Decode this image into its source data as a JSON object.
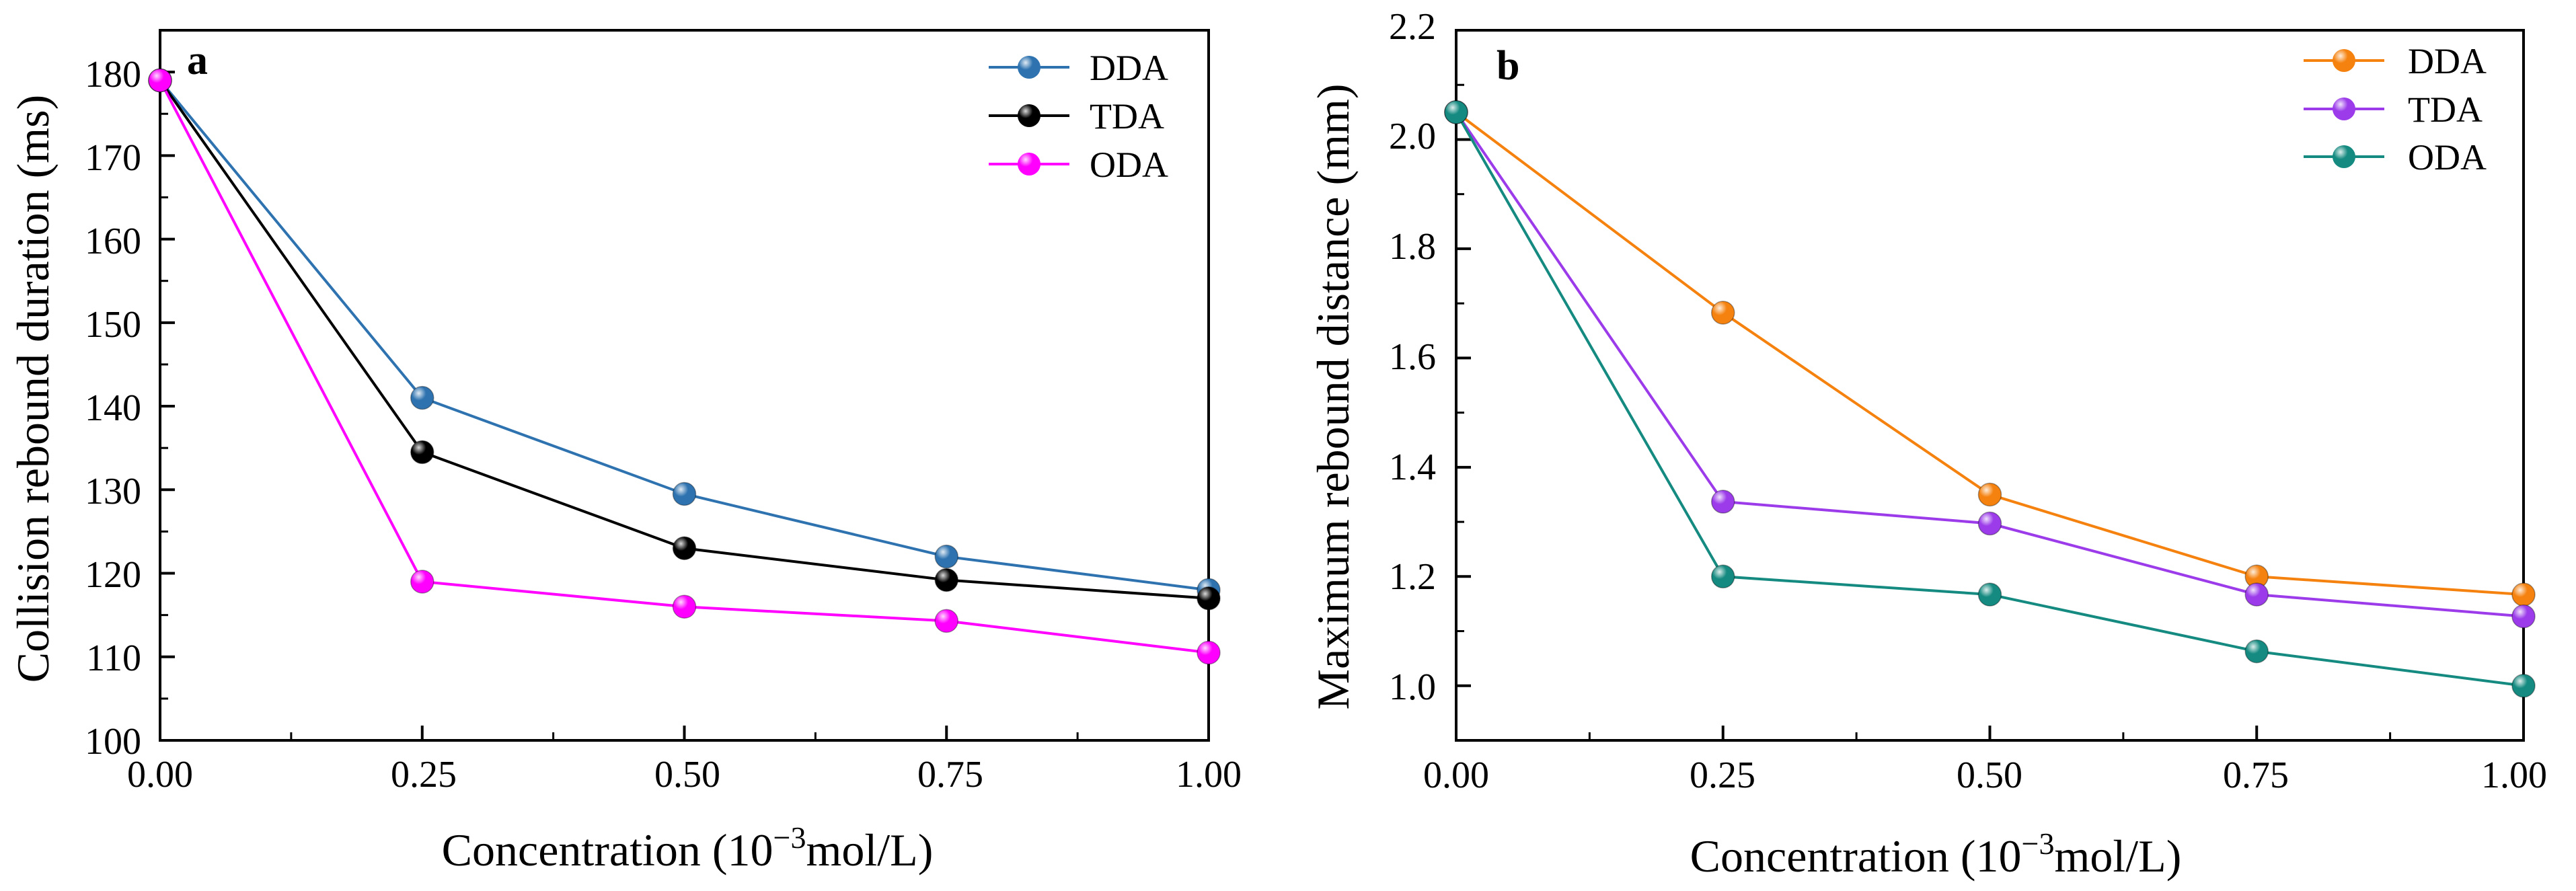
{
  "chart_data": [
    {
      "type": "line",
      "panel_label": "a",
      "xlabel_main": "Concentration (10",
      "xlabel_sup": "−3",
      "xlabel_tail": "mol/L)",
      "ylabel": "Collision rebound duration  (ms)",
      "xlim": [
        0,
        1
      ],
      "ylim": [
        100,
        185
      ],
      "xticks": [
        "0.00",
        "0.25",
        "0.50",
        "0.75",
        "1.00"
      ],
      "xtick_values": [
        0,
        0.25,
        0.5,
        0.75,
        1.0
      ],
      "yticks": [
        "100",
        "110",
        "120",
        "130",
        "140",
        "150",
        "160",
        "170",
        "180"
      ],
      "ytick_values": [
        100,
        110,
        120,
        130,
        140,
        150,
        160,
        170,
        180
      ],
      "legend_position": "top-right",
      "x": [
        0,
        0.25,
        0.5,
        0.75,
        1.0
      ],
      "series": [
        {
          "name": "DDA",
          "color": "#2e73b0",
          "values": [
            179,
            141,
            129.5,
            122,
            118
          ]
        },
        {
          "name": "TDA",
          "color": "#000000",
          "values": [
            179,
            134.5,
            123,
            119.2,
            117
          ]
        },
        {
          "name": "ODA",
          "color": "#ff00ff",
          "values": [
            179,
            119,
            116,
            114.3,
            110.5
          ]
        }
      ]
    },
    {
      "type": "line",
      "panel_label": "b",
      "xlabel_main": "Concentration (10",
      "xlabel_sup": "−3",
      "xlabel_tail": "mol/L)",
      "ylabel": "Maximum rebound distance  (mm)",
      "xlim": [
        0,
        1
      ],
      "ylim": [
        0.9,
        2.2
      ],
      "xticks": [
        "0.00",
        "0.25",
        "0.50",
        "0.75",
        "1.00"
      ],
      "xtick_values": [
        0,
        0.25,
        0.5,
        0.75,
        1.0
      ],
      "yticks": [
        "1.0",
        "1.2",
        "1.4",
        "1.6",
        "1.8",
        "2.0",
        "2.2"
      ],
      "ytick_values": [
        1.0,
        1.2,
        1.4,
        1.6,
        1.8,
        2.0,
        2.2
      ],
      "legend_position": "top-right",
      "x": [
        0,
        0.25,
        0.5,
        0.75,
        1.0
      ],
      "series": [
        {
          "name": "DDA",
          "color": "#f5820f",
          "values": [
            2.05,
            1.683,
            1.35,
            1.2,
            1.167
          ]
        },
        {
          "name": "TDA",
          "color": "#9b3bea",
          "values": [
            2.05,
            1.337,
            1.297,
            1.167,
            1.127
          ]
        },
        {
          "name": "ODA",
          "color": "#148a80",
          "values": [
            2.05,
            1.2,
            1.167,
            1.063,
            1.0
          ]
        }
      ]
    }
  ]
}
